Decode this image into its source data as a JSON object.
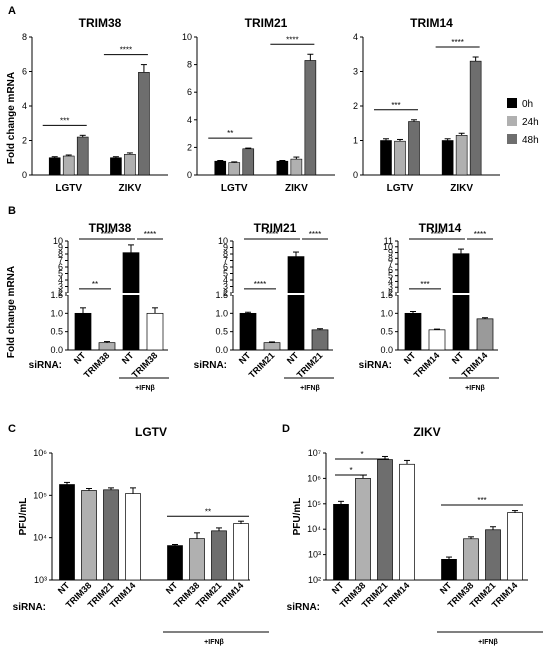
{
  "colors": {
    "black": "#000000",
    "light_gray": "#b0b0b0",
    "dark_gray": "#6e6e6e",
    "white": "#ffffff",
    "stroke": "#000000"
  },
  "panel_labels": {
    "A": "A",
    "B": "B",
    "C": "C",
    "D": "D"
  },
  "panel_a": {
    "ylabel": "Fold change mRNA",
    "legend": [
      "0h",
      "24h",
      "48h"
    ]
  },
  "panel_b": {
    "ylabel": "Fold change mRNA",
    "siRNA_label": "siRNA:",
    "ifn_label": "+IFNβ"
  },
  "chart_data": [
    {
      "panel": "A",
      "type": "bar",
      "title": "TRIM38",
      "ylabel": "Fold change mRNA",
      "categories": [
        "LGTV",
        "ZIKV"
      ],
      "ylim": [
        0,
        8
      ],
      "yticks": [
        0,
        2,
        4,
        6,
        8
      ],
      "series": [
        {
          "name": "0h",
          "values": [
            1.0,
            1.0
          ],
          "errors": [
            0.06,
            0.06
          ]
        },
        {
          "name": "24h",
          "values": [
            1.1,
            1.2
          ],
          "errors": [
            0.06,
            0.08
          ]
        },
        {
          "name": "48h",
          "values": [
            2.2,
            5.95
          ],
          "errors": [
            0.1,
            0.45
          ]
        }
      ],
      "significance": [
        {
          "group": 0,
          "label": "***"
        },
        {
          "group": 1,
          "label": "****"
        }
      ]
    },
    {
      "panel": "A",
      "type": "bar",
      "title": "TRIM21",
      "categories": [
        "LGTV",
        "ZIKV"
      ],
      "ylim": [
        0,
        10
      ],
      "yticks": [
        0,
        2,
        4,
        6,
        8,
        10
      ],
      "series": [
        {
          "name": "0h",
          "values": [
            1.0,
            1.0
          ],
          "errors": [
            0.05,
            0.05
          ]
        },
        {
          "name": "24h",
          "values": [
            0.9,
            1.15
          ],
          "errors": [
            0.05,
            0.15
          ]
        },
        {
          "name": "48h",
          "values": [
            1.9,
            8.3
          ],
          "errors": [
            0.05,
            0.45
          ]
        }
      ],
      "significance": [
        {
          "group": 0,
          "label": "**"
        },
        {
          "group": 1,
          "label": "****"
        }
      ]
    },
    {
      "panel": "A",
      "type": "bar",
      "title": "TRIM14",
      "categories": [
        "LGTV",
        "ZIKV"
      ],
      "ylim": [
        0,
        4
      ],
      "yticks": [
        0,
        1,
        2,
        3,
        4
      ],
      "series": [
        {
          "name": "0h",
          "values": [
            1.0,
            1.0
          ],
          "errors": [
            0.05,
            0.05
          ]
        },
        {
          "name": "24h",
          "values": [
            0.98,
            1.15
          ],
          "errors": [
            0.05,
            0.06
          ]
        },
        {
          "name": "48h",
          "values": [
            1.55,
            3.3
          ],
          "errors": [
            0.05,
            0.12
          ]
        }
      ],
      "significance": [
        {
          "group": 0,
          "label": "***"
        },
        {
          "group": 1,
          "label": "****"
        }
      ]
    },
    {
      "panel": "B",
      "type": "bar",
      "title": "TRIM38",
      "ylabel": "Fold change mRNA",
      "broken_axis": true,
      "lower_ticks": [
        0.0,
        0.5,
        1.0,
        1.5
      ],
      "upper_ticks": [
        2,
        3,
        4,
        5,
        6,
        7,
        8,
        9,
        10
      ],
      "categories": [
        "NT",
        "TRIM38",
        "NT",
        "TRIM38"
      ],
      "values": [
        1.0,
        0.2,
        8.2,
        1.0
      ],
      "errors": [
        0.15,
        0.03,
        1.2,
        0.15
      ],
      "fills": [
        "black",
        "light_gray",
        "black",
        "white"
      ],
      "significance": [
        {
          "from": 0,
          "to": 1,
          "label": "**"
        },
        {
          "from": 0,
          "to": 2,
          "label": "****"
        },
        {
          "from": 2,
          "to": 3,
          "label": "****"
        }
      ]
    },
    {
      "panel": "B",
      "type": "bar",
      "title": "TRIM21",
      "broken_axis": true,
      "lower_ticks": [
        0.0,
        0.5,
        1.0,
        1.5
      ],
      "upper_ticks": [
        2,
        3,
        4,
        5,
        6,
        7,
        8,
        9,
        10
      ],
      "categories": [
        "NT",
        "TRIM21",
        "NT",
        "TRIM21"
      ],
      "values": [
        1.0,
        0.2,
        7.6,
        0.55
      ],
      "errors": [
        0.03,
        0.02,
        0.7,
        0.03
      ],
      "fills": [
        "black",
        "light_gray",
        "black",
        "dark_gray"
      ],
      "significance": [
        {
          "from": 0,
          "to": 1,
          "label": "****"
        },
        {
          "from": 0,
          "to": 2,
          "label": "****"
        },
        {
          "from": 2,
          "to": 3,
          "label": "****"
        }
      ]
    },
    {
      "panel": "B",
      "type": "bar",
      "title": "TRIM14",
      "broken_axis": true,
      "lower_ticks": [
        0.0,
        0.5,
        1.0,
        1.5
      ],
      "upper_ticks": [
        2,
        3,
        4,
        5,
        6,
        7,
        8,
        9,
        10,
        11
      ],
      "categories": [
        "NT",
        "TRIM14",
        "NT",
        "TRIM14"
      ],
      "values": [
        1.0,
        0.55,
        8.8,
        0.85
      ],
      "errors": [
        0.05,
        0.02,
        0.8,
        0.03
      ],
      "fills": [
        "black",
        "white",
        "black",
        "gray_mid"
      ],
      "significance": [
        {
          "from": 0,
          "to": 1,
          "label": "***"
        },
        {
          "from": 0,
          "to": 2,
          "label": "****"
        },
        {
          "from": 2,
          "to": 3,
          "label": "****"
        }
      ]
    },
    {
      "panel": "C",
      "type": "bar",
      "title": "LGTV",
      "ylabel": "PFU/mL",
      "log_scale": true,
      "ylim": [
        1000,
        1000000
      ],
      "yticks": [
        "10³",
        "10⁴",
        "10⁵",
        "10⁶"
      ],
      "categories": [
        "NT",
        "TRIM38",
        "TRIM21",
        "TRIM14",
        "NT",
        "TRIM38",
        "TRIM21",
        "TRIM14"
      ],
      "values": [
        180000,
        130000,
        135000,
        110000,
        6500,
        9500,
        14500,
        21500
      ],
      "errors": [
        22000,
        15000,
        15000,
        40000,
        400,
        3500,
        2500,
        3000
      ],
      "fills": [
        "black",
        "light_gray",
        "dark_gray",
        "white",
        "black",
        "light_gray",
        "dark_gray",
        "white"
      ],
      "significance": [
        {
          "from": 4,
          "to": 7,
          "label": "**"
        }
      ]
    },
    {
      "panel": "D",
      "type": "bar",
      "title": "ZIKV",
      "ylabel": "PFU/mL",
      "log_scale": true,
      "ylim": [
        100,
        10000000
      ],
      "yticks": [
        "10²",
        "10³",
        "10⁴",
        "10⁵",
        "10⁶",
        "10⁷"
      ],
      "categories": [
        "NT",
        "TRIM38",
        "TRIM21",
        "TRIM14",
        "NT",
        "TRIM38",
        "TRIM21",
        "TRIM14"
      ],
      "values": [
        95000,
        1000000,
        5500000,
        3600000,
        650,
        4200,
        9500,
        45000
      ],
      "errors": [
        30000,
        350000,
        1800000,
        1500000,
        150,
        800,
        3000,
        9000
      ],
      "fills": [
        "black",
        "light_gray",
        "dark_gray",
        "white",
        "black",
        "light_gray",
        "dark_gray",
        "white"
      ],
      "significance": [
        {
          "from": 0,
          "to": 1,
          "label": "*"
        },
        {
          "from": 0,
          "to": 2,
          "label": "*"
        },
        {
          "from": 4,
          "to": 7,
          "label": "***"
        }
      ]
    }
  ]
}
